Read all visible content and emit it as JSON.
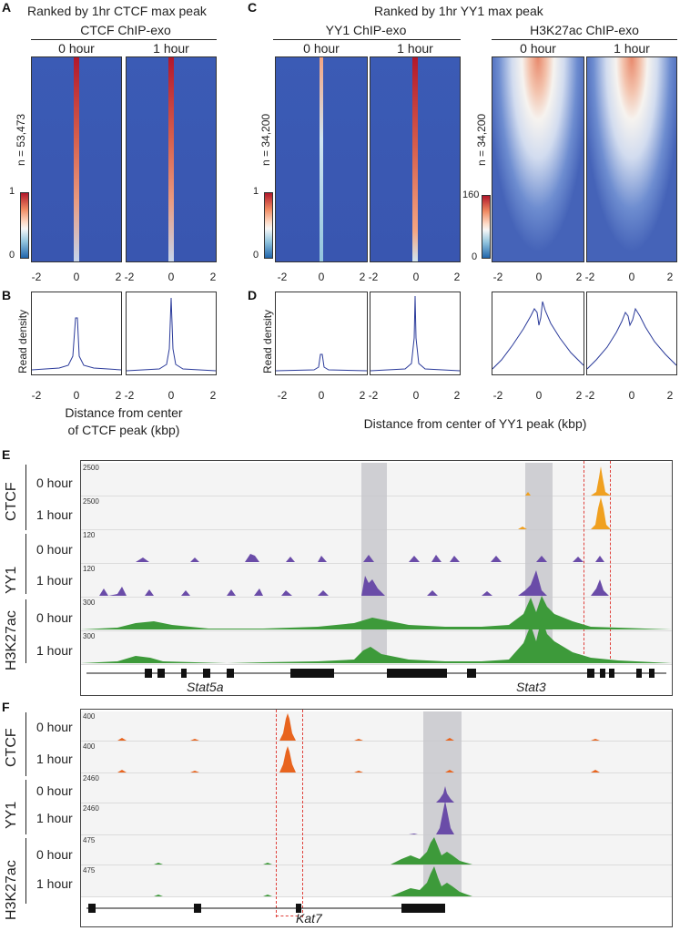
{
  "panels": {
    "A": {
      "letter": "A",
      "title": "Ranked by 1hr CTCF max peak",
      "subtitle": "CTCF ChIP-exo",
      "col0": "0 hour",
      "col1": "1 hour",
      "n_label": "n = 53,473",
      "cbar_max": "1",
      "cbar_min": "0"
    },
    "B": {
      "letter": "B",
      "ylabel": "Read density",
      "xlabel_line1": "Distance from center",
      "xlabel_line2": "of CTCF peak (kbp)"
    },
    "C": {
      "letter": "C",
      "title": "Ranked by 1hr YY1 max peak",
      "subtitle_yy1": "YY1 ChIP-exo",
      "subtitle_h3k": "H3K27ac ChIP-exo",
      "col0": "0 hour",
      "col1": "1 hour",
      "col2": "0 hour",
      "col3": "1 hour",
      "n_label_yy1": "n = 34,200",
      "n_label_h3k": "n = 34,200",
      "cbar_yy1_max": "1",
      "cbar_yy1_min": "0",
      "cbar_h3k_max": "160",
      "cbar_h3k_min": "0"
    },
    "D": {
      "letter": "D",
      "ylabel": "Read density",
      "xlabel": "Distance from center of YY1 peak (kbp)"
    },
    "E": {
      "letter": "E",
      "groups": [
        "CTCF",
        "YY1",
        "H3K27ac"
      ],
      "rows": [
        "0 hour",
        "1 hour",
        "0 hour",
        "1 hour",
        "0 hour",
        "1 hour"
      ],
      "scales": [
        "2500",
        "2500",
        "120",
        "120",
        "300",
        "300"
      ],
      "genes": [
        "Stat5a",
        "Stat3"
      ]
    },
    "F": {
      "letter": "F",
      "groups": [
        "CTCF",
        "YY1",
        "H3K27ac"
      ],
      "rows": [
        "0 hour",
        "1 hour",
        "0 hour",
        "1 hour",
        "0 hour",
        "1 hour"
      ],
      "scales": [
        "400",
        "400",
        "2460",
        "2460",
        "475",
        "475"
      ],
      "genes": [
        "Kat7"
      ]
    }
  },
  "axis_ticks": [
    "-2",
    "0",
    "2"
  ],
  "colors": {
    "ctcf_e": "#f0a020",
    "ctcf_f": "#e8641e",
    "yy1": "#6a4ca8",
    "h3k27ac": "#3d9a3a",
    "highlight": "#cfcfd2",
    "dash": "#e0403a",
    "heat_blue": "#3b5bb5",
    "heat_red": "#b2182b"
  }
}
